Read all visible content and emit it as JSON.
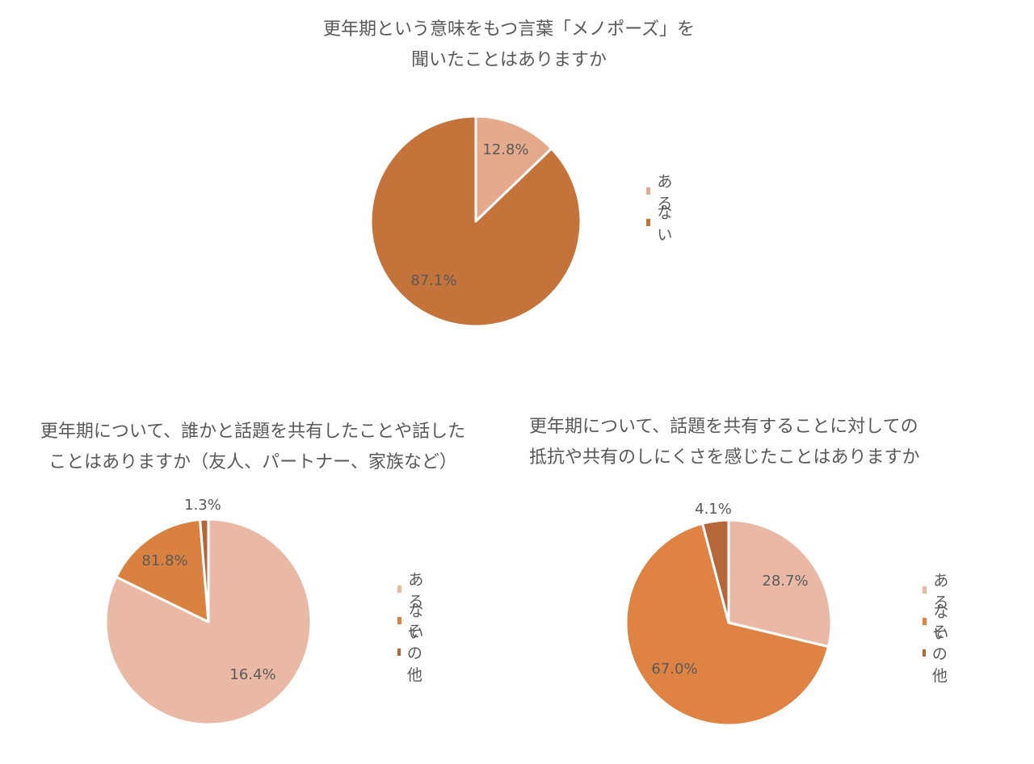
{
  "chart_data": [
    {
      "type": "pie",
      "title_lines": [
        "更年期という意味をもつ言葉「メノポーズ」を",
        "聞いたことはありますか"
      ],
      "categories": [
        "ある",
        "ない"
      ],
      "values": [
        12.8,
        87.1
      ],
      "data_labels": [
        "12.8%",
        "87.1%"
      ],
      "colors": [
        "#e5a98c",
        "#c4733a"
      ],
      "legend_placement": "right"
    },
    {
      "type": "pie",
      "title_lines": [
        "更年期について、誰かと話題を共有したことや話した",
        "ことはありますか（友人、パートナー、家族など）"
      ],
      "categories": [
        "ある",
        "ない",
        "その他"
      ],
      "values": [
        81.8,
        16.4,
        1.3
      ],
      "data_labels": [
        "81.8%",
        "16.4%",
        "1.3%"
      ],
      "colors": [
        "#e9b9a5",
        "#d98240",
        "#b3663a"
      ],
      "legend_placement": "right"
    },
    {
      "type": "pie",
      "title_lines": [
        "更年期について、話題を共有することに対しての",
        "抵抗や共有のしにくさを感じたことはありますか"
      ],
      "categories": [
        "ある",
        "ない",
        "その他"
      ],
      "values": [
        28.7,
        67.0,
        4.1
      ],
      "data_labels": [
        "28.7%",
        "67.0%",
        "4.1%"
      ],
      "colors": [
        "#e9b9a5",
        "#de8343",
        "#b5663a"
      ],
      "legend_placement": "right"
    }
  ]
}
